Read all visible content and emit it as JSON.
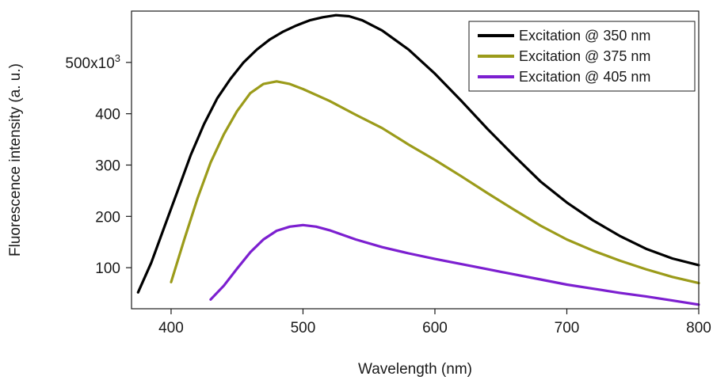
{
  "chart_data": {
    "type": "line",
    "xlabel": "Wavelength (nm)",
    "ylabel": "Fluorescence intensity (a. u.)",
    "xlim": [
      370,
      800
    ],
    "ylim": [
      20000,
      600000
    ],
    "x_ticks": [
      400,
      500,
      600,
      700,
      800
    ],
    "x_tick_labels": [
      "400",
      "500",
      "600",
      "700",
      "800"
    ],
    "y_ticks": [
      100000,
      200000,
      300000,
      400000,
      500000
    ],
    "y_tick_labels": [
      "100",
      "200",
      "300",
      "400",
      "500x10"
    ],
    "y_tick_top_superscript": "3",
    "grid": false,
    "legend_position": "top-right",
    "series": [
      {
        "name": "Excitation @ 350 nm",
        "color": "#000000",
        "x": [
          375,
          385,
          395,
          405,
          415,
          425,
          435,
          445,
          455,
          465,
          475,
          485,
          495,
          505,
          515,
          525,
          535,
          545,
          560,
          580,
          600,
          620,
          640,
          660,
          680,
          700,
          720,
          740,
          760,
          780,
          800
        ],
        "y": [
          52000,
          110000,
          180000,
          250000,
          320000,
          380000,
          430000,
          468000,
          500000,
          525000,
          545000,
          560000,
          572000,
          582000,
          588000,
          592000,
          590000,
          582000,
          562000,
          525000,
          478000,
          425000,
          370000,
          318000,
          268000,
          227000,
          192000,
          162000,
          137000,
          118000,
          105000
        ]
      },
      {
        "name": "Excitation @ 375 nm",
        "color": "#9b9b1a",
        "x": [
          400,
          410,
          420,
          430,
          440,
          450,
          460,
          470,
          480,
          490,
          500,
          520,
          540,
          560,
          580,
          600,
          620,
          640,
          660,
          680,
          700,
          720,
          740,
          760,
          780,
          800
        ],
        "y": [
          72000,
          155000,
          235000,
          305000,
          360000,
          405000,
          440000,
          458000,
          463000,
          458000,
          448000,
          425000,
          398000,
          372000,
          340000,
          310000,
          278000,
          245000,
          213000,
          182000,
          155000,
          133000,
          114000,
          97000,
          82000,
          70000
        ]
      },
      {
        "name": "Excitation @ 405 nm",
        "color": "#7c1fd0",
        "x": [
          430,
          440,
          450,
          460,
          470,
          480,
          490,
          500,
          510,
          520,
          540,
          560,
          580,
          600,
          620,
          640,
          660,
          680,
          700,
          720,
          740,
          760,
          780,
          800
        ],
        "y": [
          38000,
          65000,
          98000,
          130000,
          155000,
          172000,
          180000,
          183000,
          180000,
          173000,
          155000,
          140000,
          128000,
          117000,
          107000,
          97000,
          87000,
          77000,
          67000,
          59000,
          51000,
          44000,
          36000,
          28000
        ]
      }
    ]
  }
}
